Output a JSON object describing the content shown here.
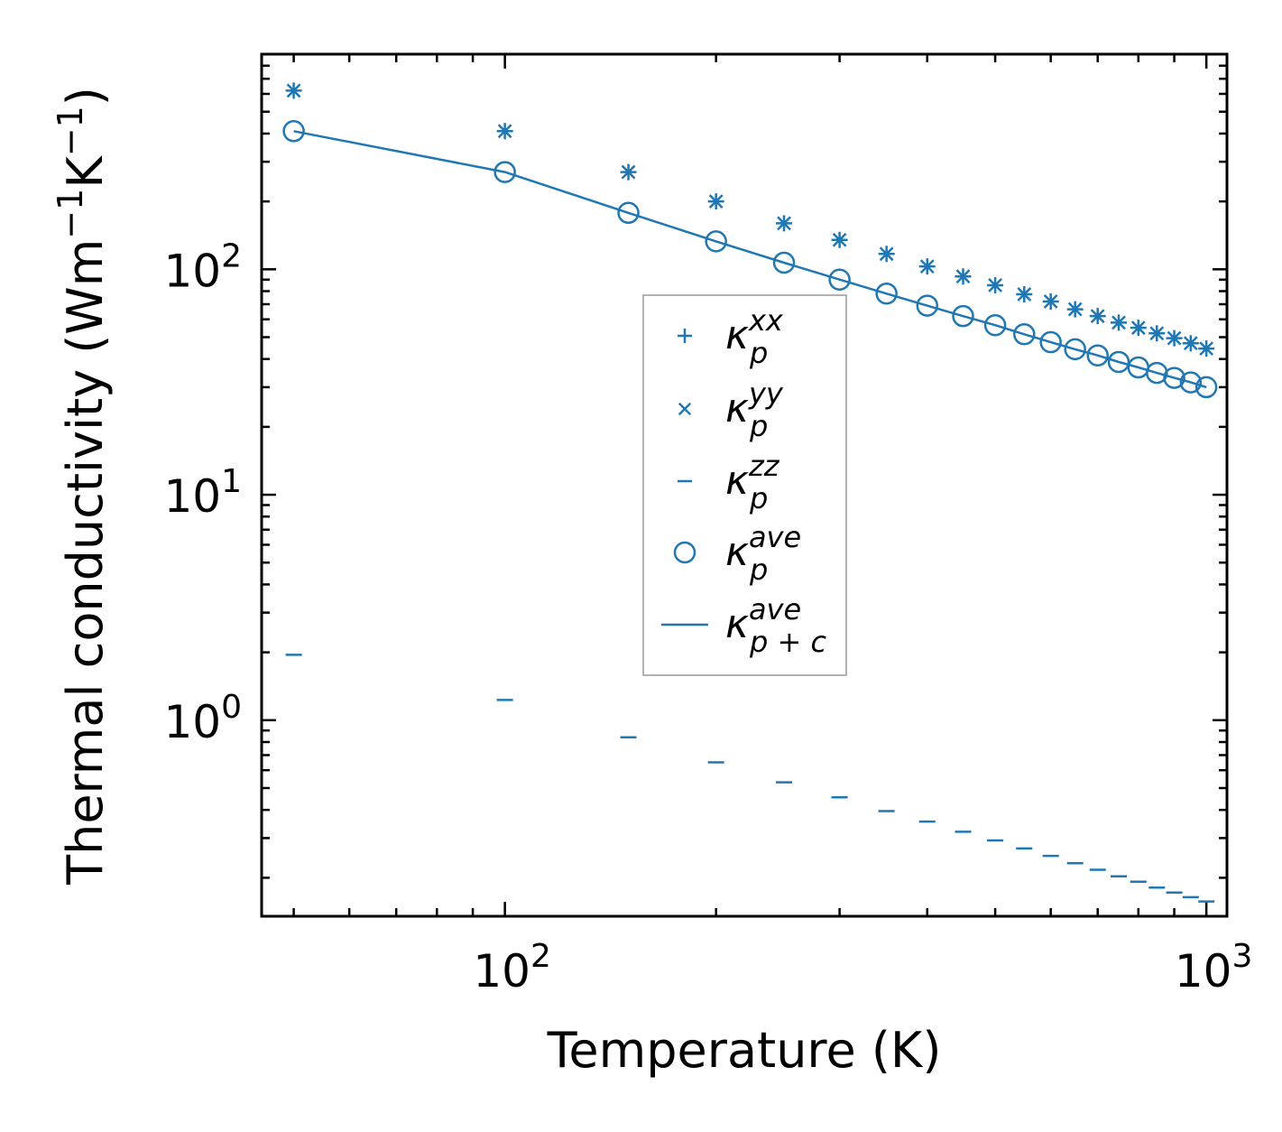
{
  "chart_data": {
    "type": "scatter",
    "xscale": "log",
    "yscale": "log",
    "xlabel": "Temperature (K)",
    "ylabel": "Thermal conductivity (Wm",
    "ylabel_exp1": "−1",
    "ylabel_mid": "K",
    "ylabel_exp2": "−1",
    "ylabel_close": ")",
    "xlim": [
      45,
      1070
    ],
    "ylim": [
      0.135,
      900
    ],
    "x_ticks": [
      {
        "value": 100,
        "base": "10",
        "exp": "2"
      },
      {
        "value": 1000,
        "base": "10",
        "exp": "3"
      }
    ],
    "y_ticks": [
      {
        "value": 1,
        "base": "10",
        "exp": "0"
      },
      {
        "value": 10,
        "base": "10",
        "exp": "1"
      },
      {
        "value": 100,
        "base": "10",
        "exp": "2"
      }
    ],
    "x": [
      50,
      100,
      150,
      200,
      250,
      300,
      350,
      400,
      450,
      500,
      550,
      600,
      650,
      700,
      750,
      800,
      850,
      900,
      950,
      1000
    ],
    "series": [
      {
        "name": "kappa_p_xx",
        "symbol": "κ",
        "sub": "p",
        "sup": "xx",
        "marker": "plus",
        "values": [
          620,
          410,
          270,
          200,
          160,
          135,
          117,
          103,
          93,
          85,
          77.5,
          72,
          66.5,
          62,
          58,
          55,
          52,
          49.5,
          47,
          44.5
        ]
      },
      {
        "name": "kappa_p_yy",
        "symbol": "κ",
        "sub": "p",
        "sup": "yy",
        "marker": "x",
        "values": [
          620,
          410,
          270,
          200,
          160,
          135,
          117,
          103,
          93,
          85,
          77.5,
          72,
          66.5,
          62,
          58,
          55,
          52,
          49.5,
          47,
          44.5
        ]
      },
      {
        "name": "kappa_p_zz",
        "symbol": "κ",
        "sub": "p",
        "sup": "zz",
        "marker": "hline",
        "values": [
          1.95,
          1.23,
          0.84,
          0.65,
          0.53,
          0.455,
          0.395,
          0.355,
          0.32,
          0.293,
          0.27,
          0.25,
          0.232,
          0.217,
          0.203,
          0.192,
          0.181,
          0.172,
          0.164,
          0.157
        ]
      },
      {
        "name": "kappa_p_ave",
        "symbol": "κ",
        "sub": "p",
        "sup": "ave",
        "marker": "circle",
        "values": [
          410,
          270,
          178,
          133,
          107,
          90,
          78,
          69,
          62,
          56.5,
          51.5,
          47.5,
          44.2,
          41.5,
          38.8,
          36.7,
          34.7,
          33,
          31.5,
          30
        ]
      },
      {
        "name": "kappa_p+c_ave",
        "symbol": "κ",
        "sub": "p + c",
        "sup": "ave",
        "marker": "line",
        "values": [
          410,
          270,
          178,
          133,
          107,
          90,
          78,
          69,
          62,
          56.5,
          51.5,
          47.5,
          44.2,
          41.5,
          38.8,
          36.7,
          34.7,
          33,
          31.5,
          30
        ]
      }
    ],
    "legend_position": "center",
    "colors": {
      "series": "#1f77b4",
      "axes": "#000000",
      "legend_border": "#999999"
    }
  }
}
